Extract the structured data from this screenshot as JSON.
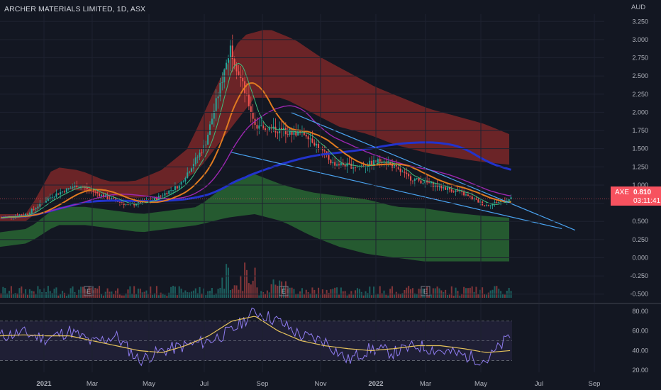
{
  "header": {
    "title": "ARCHER MATERIALS LIMITED, 1D, ASX",
    "currency": "AUD"
  },
  "price_badge": {
    "symbol": "AXE",
    "price": "0.810",
    "countdown": "03:11:41"
  },
  "colors": {
    "background": "#131722",
    "candle_up": "#26a69a",
    "candle_down": "#ef5350",
    "upper_band": "#8a2a2a",
    "lower_band": "#2b6b35",
    "ma_slow": "#2233cc",
    "ma_mid": "#e07b20",
    "ma_fast": "#9c27b0",
    "trendline": "#4aa3f0",
    "rsi_line": "#8f7cf0",
    "rsi_signal": "#e6c35c"
  },
  "chart_data": [
    {
      "type": "line",
      "series_kind": "candlestick_price",
      "x_ticks": [
        "2021",
        "Mar",
        "May",
        "Jul",
        "Sep",
        "Nov",
        "2022",
        "Mar",
        "May",
        "Jul",
        "Sep"
      ],
      "y_ticks": [
        "3.250",
        "3.000",
        "2.750",
        "2.500",
        "2.250",
        "2.000",
        "1.750",
        "1.500",
        "1.250",
        "1.000",
        "0.750",
        "0.500",
        "0.250",
        "0.000",
        "-0.250",
        "-0.500"
      ],
      "ylim": [
        -0.6,
        3.35
      ],
      "earnings_markers": [
        "E",
        "E",
        "E"
      ],
      "price_keypoints": [
        0.55,
        0.6,
        0.85,
        1.0,
        0.85,
        0.72,
        0.8,
        1.0,
        1.55,
        2.9,
        1.8,
        1.75,
        1.7,
        1.3,
        1.25,
        1.35,
        1.1,
        1.0,
        0.9,
        0.72,
        0.81
      ],
      "upper_band_top": [
        0.6,
        0.6,
        1.25,
        1.2,
        1.05,
        1.05,
        1.2,
        1.5,
        2.3,
        3.05,
        3.15,
        3.0,
        2.75,
        2.55,
        2.35,
        2.2,
        2.05,
        1.95,
        1.85,
        1.7
      ],
      "upper_band_bottom": [
        0.5,
        0.5,
        0.95,
        0.92,
        0.85,
        0.82,
        0.95,
        1.2,
        1.7,
        2.2,
        2.2,
        2.0,
        1.8,
        1.7,
        1.55,
        1.45,
        1.38,
        1.32,
        1.28
      ],
      "lower_band_top": [
        0.35,
        0.4,
        0.7,
        0.7,
        0.65,
        0.6,
        0.65,
        0.7,
        1.0,
        1.15,
        1.0,
        0.9,
        0.85,
        0.8,
        0.7,
        0.68,
        0.62,
        0.58,
        0.55
      ],
      "lower_band_bottom": [
        0.15,
        0.2,
        0.45,
        0.45,
        0.4,
        0.35,
        0.4,
        0.45,
        0.55,
        0.6,
        0.5,
        0.3,
        0.15,
        0.05,
        0.0,
        -0.05,
        -0.05,
        -0.05,
        -0.05
      ],
      "trendlines": [
        {
          "from": [
            0.44,
            2.0
          ],
          "to": [
            0.87,
            0.38
          ]
        },
        {
          "from": [
            0.35,
            1.45
          ],
          "to": [
            0.85,
            0.4
          ]
        }
      ]
    },
    {
      "type": "line",
      "series_kind": "rsi",
      "y_ticks": [
        "80.00",
        "60.00",
        "40.00",
        "20.00"
      ],
      "ylim": [
        18,
        85
      ],
      "rsi_keypoints": [
        55,
        58,
        52,
        60,
        48,
        55,
        30,
        40,
        45,
        50,
        60,
        80,
        70,
        55,
        50,
        30,
        42,
        38,
        45,
        40,
        35,
        30,
        55
      ],
      "signal_keypoints": [
        55,
        56,
        55,
        55,
        50,
        45,
        40,
        38,
        45,
        55,
        70,
        75,
        60,
        50,
        45,
        42,
        40,
        42,
        45,
        45,
        42,
        38,
        40
      ]
    }
  ]
}
